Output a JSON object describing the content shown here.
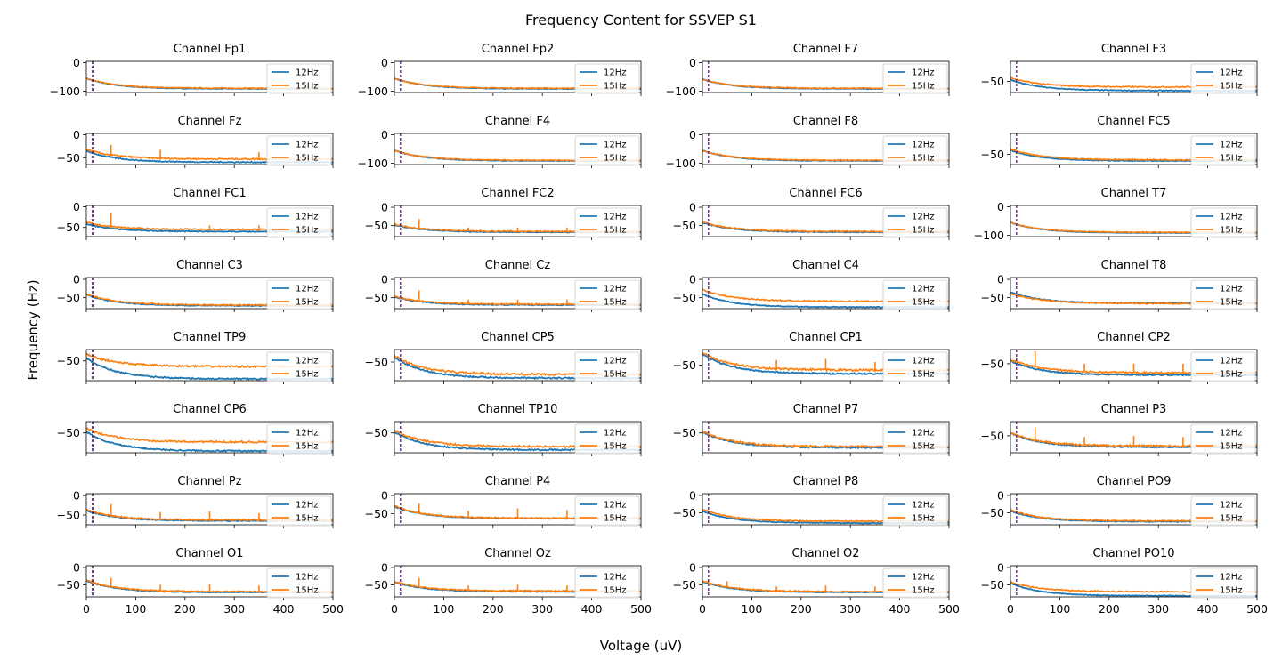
{
  "figure": {
    "title": "Frequency Content for SSVEP S1",
    "xlabel": "Voltage (uV)",
    "ylabel": "Frequency (Hz)"
  },
  "colors": {
    "12Hz": "#1f77b4",
    "15Hz": "#ff7f0e",
    "marker_12": "#1f3fb4",
    "marker_15": "#8b1a1a"
  },
  "chart_data": {
    "type": "line",
    "grid": false,
    "legend_placement": "upper-right",
    "series_names": [
      "12Hz",
      "15Hz"
    ],
    "xlim": [
      0,
      500
    ],
    "xticks": [
      0,
      100,
      200,
      300,
      400,
      500
    ],
    "stimulus_markers_hz": [
      12,
      15
    ],
    "panels": [
      {
        "title": "Channel Fp1",
        "ylim": [
          -105,
          5
        ],
        "yticks": [
          0,
          -100
        ],
        "s12": {
          "start": -55,
          "end": -92
        },
        "s15": {
          "start": -55,
          "end": -90
        },
        "peaks15": []
      },
      {
        "title": "Channel Fp2",
        "ylim": [
          -105,
          5
        ],
        "yticks": [
          0,
          -100
        ],
        "s12": {
          "start": -55,
          "end": -92
        },
        "s15": {
          "start": -55,
          "end": -90
        },
        "peaks15": []
      },
      {
        "title": "Channel F7",
        "ylim": [
          -105,
          5
        ],
        "yticks": [
          0,
          -100
        ],
        "s12": {
          "start": -58,
          "end": -92
        },
        "s15": {
          "start": -58,
          "end": -90
        },
        "peaks15": []
      },
      {
        "title": "Channel F3",
        "ylim": [
          -80,
          5
        ],
        "yticks": [
          -50
        ],
        "s12": {
          "start": -45,
          "end": -75
        },
        "s15": {
          "start": -40,
          "end": -65
        },
        "peaks15": []
      },
      {
        "title": "Channel Fz",
        "ylim": [
          -65,
          3
        ],
        "yticks": [
          0,
          -50
        ],
        "s12": {
          "start": -35,
          "end": -60
        },
        "s15": {
          "start": -32,
          "end": -53
        },
        "peaks15": [
          [
            50,
            -22
          ],
          [
            150,
            -33
          ],
          [
            350,
            -38
          ]
        ]
      },
      {
        "title": "Channel F4",
        "ylim": [
          -105,
          5
        ],
        "yticks": [
          0,
          -100
        ],
        "s12": {
          "start": -55,
          "end": -92
        },
        "s15": {
          "start": -55,
          "end": -90
        },
        "peaks15": []
      },
      {
        "title": "Channel F8",
        "ylim": [
          -105,
          5
        ],
        "yticks": [
          0,
          -100
        ],
        "s12": {
          "start": -55,
          "end": -92
        },
        "s15": {
          "start": -55,
          "end": -90
        },
        "peaks15": []
      },
      {
        "title": "Channel FC5",
        "ylim": [
          -78,
          8
        ],
        "yticks": [
          -50
        ],
        "s12": {
          "start": -38,
          "end": -68
        },
        "s15": {
          "start": -35,
          "end": -65
        },
        "peaks15": []
      },
      {
        "title": "Channel FC1",
        "ylim": [
          -72,
          3
        ],
        "yticks": [
          0,
          -50
        ],
        "s12": {
          "start": -42,
          "end": -60
        },
        "s15": {
          "start": -38,
          "end": -55
        },
        "peaks15": [
          [
            50,
            -15
          ],
          [
            250,
            -45
          ],
          [
            350,
            -45
          ]
        ]
      },
      {
        "title": "Channel FC2",
        "ylim": [
          -80,
          5
        ],
        "yticks": [
          0,
          -50
        ],
        "s12": {
          "start": -48,
          "end": -68
        },
        "s15": {
          "start": -46,
          "end": -66
        },
        "peaks15": [
          [
            50,
            -32
          ],
          [
            150,
            -55
          ],
          [
            250,
            -55
          ],
          [
            350,
            -55
          ]
        ]
      },
      {
        "title": "Channel FC6",
        "ylim": [
          -80,
          5
        ],
        "yticks": [
          0,
          -50
        ],
        "s12": {
          "start": -42,
          "end": -68
        },
        "s15": {
          "start": -40,
          "end": -66
        },
        "peaks15": []
      },
      {
        "title": "Channel T7",
        "ylim": [
          -105,
          5
        ],
        "yticks": [
          0,
          -100
        ],
        "s12": {
          "start": -55,
          "end": -92
        },
        "s15": {
          "start": -55,
          "end": -90
        },
        "peaks15": []
      },
      {
        "title": "Channel C3",
        "ylim": [
          -80,
          5
        ],
        "yticks": [
          0,
          -50
        ],
        "s12": {
          "start": -42,
          "end": -72
        },
        "s15": {
          "start": -40,
          "end": -70
        },
        "peaks15": []
      },
      {
        "title": "Channel Cz",
        "ylim": [
          -80,
          5
        ],
        "yticks": [
          0,
          -50
        ],
        "s12": {
          "start": -48,
          "end": -70
        },
        "s15": {
          "start": -46,
          "end": -68
        },
        "peaks15": [
          [
            50,
            -30
          ],
          [
            150,
            -55
          ],
          [
            250,
            -55
          ],
          [
            350,
            -55
          ]
        ]
      },
      {
        "title": "Channel C4",
        "ylim": [
          -80,
          5
        ],
        "yticks": [
          0,
          -50
        ],
        "s12": {
          "start": -40,
          "end": -76
        },
        "s15": {
          "start": -28,
          "end": -60
        },
        "peaks15": []
      },
      {
        "title": "Channel T8",
        "ylim": [
          -80,
          5
        ],
        "yticks": [
          0,
          -50
        ],
        "s12": {
          "start": -35,
          "end": -65
        },
        "s15": {
          "start": -38,
          "end": -66
        },
        "peaks15": []
      },
      {
        "title": "Channel TP9",
        "ylim": [
          -85,
          -30
        ],
        "yticks": [
          -50
        ],
        "s12": {
          "start": -45,
          "end": -82
        },
        "s15": {
          "start": -38,
          "end": -60
        },
        "peaks15": []
      },
      {
        "title": "Channel CP5",
        "ylim": [
          -80,
          -30
        ],
        "yticks": [
          -50
        ],
        "s12": {
          "start": -42,
          "end": -76
        },
        "s15": {
          "start": -40,
          "end": -70
        },
        "peaks15": []
      },
      {
        "title": "Channel CP1",
        "ylim": [
          -75,
          -25
        ],
        "yticks": [
          -50
        ],
        "s12": {
          "start": -32,
          "end": -64
        },
        "s15": {
          "start": -30,
          "end": -58
        },
        "peaks15": [
          [
            150,
            -42
          ],
          [
            250,
            -40
          ],
          [
            350,
            -45
          ]
        ]
      },
      {
        "title": "Channel CP2",
        "ylim": [
          -80,
          -25
        ],
        "yticks": [
          -50
        ],
        "s12": {
          "start": -45,
          "end": -70
        },
        "s15": {
          "start": -42,
          "end": -66
        },
        "peaks15": [
          [
            50,
            -28
          ],
          [
            150,
            -50
          ],
          [
            250,
            -50
          ],
          [
            350,
            -50
          ]
        ]
      },
      {
        "title": "Channel CP6",
        "ylim": [
          -85,
          -30
        ],
        "yticks": [
          -50
        ],
        "s12": {
          "start": -48,
          "end": -82
        },
        "s15": {
          "start": -42,
          "end": -66
        },
        "peaks15": []
      },
      {
        "title": "Channel TP10",
        "ylim": [
          -85,
          -30
        ],
        "yticks": [
          -50
        ],
        "s12": {
          "start": -48,
          "end": -80
        },
        "s15": {
          "start": -45,
          "end": -74
        },
        "peaks15": []
      },
      {
        "title": "Channel P7",
        "ylim": [
          -85,
          -30
        ],
        "yticks": [
          -50
        ],
        "s12": {
          "start": -48,
          "end": -76
        },
        "s15": {
          "start": -47,
          "end": -74
        },
        "peaks15": []
      },
      {
        "title": "Channel P3",
        "ylim": [
          -80,
          -25
        ],
        "yticks": [
          -50
        ],
        "s12": {
          "start": -45,
          "end": -70
        },
        "s15": {
          "start": -44,
          "end": -68
        },
        "peaks15": [
          [
            50,
            -35
          ],
          [
            150,
            -52
          ],
          [
            250,
            -50
          ],
          [
            350,
            -52
          ]
        ]
      },
      {
        "title": "Channel Pz",
        "ylim": [
          -75,
          5
        ],
        "yticks": [
          0,
          -50
        ],
        "s12": {
          "start": -38,
          "end": -65
        },
        "s15": {
          "start": -36,
          "end": -63
        },
        "peaks15": [
          [
            50,
            -22
          ],
          [
            150,
            -42
          ],
          [
            250,
            -40
          ],
          [
            350,
            -45
          ]
        ]
      },
      {
        "title": "Channel P4",
        "ylim": [
          -80,
          5
        ],
        "yticks": [
          0,
          -50
        ],
        "s12": {
          "start": -30,
          "end": -63
        },
        "s15": {
          "start": -28,
          "end": -62
        },
        "peaks15": [
          [
            50,
            -22
          ],
          [
            150,
            -42
          ],
          [
            250,
            -35
          ],
          [
            350,
            -40
          ]
        ]
      },
      {
        "title": "Channel P8",
        "ylim": [
          -85,
          5
        ],
        "yticks": [
          0,
          -50
        ],
        "s12": {
          "start": -45,
          "end": -80
        },
        "s15": {
          "start": -40,
          "end": -75
        },
        "peaks15": []
      },
      {
        "title": "Channel PO9",
        "ylim": [
          -85,
          5
        ],
        "yticks": [
          0,
          -50
        ],
        "s12": {
          "start": -45,
          "end": -76
        },
        "s15": {
          "start": -42,
          "end": -74
        },
        "peaks15": []
      },
      {
        "title": "Channel O1",
        "ylim": [
          -85,
          5
        ],
        "yticks": [
          0,
          -50
        ],
        "s12": {
          "start": -38,
          "end": -72
        },
        "s15": {
          "start": -36,
          "end": -70
        },
        "peaks15": [
          [
            50,
            -30
          ],
          [
            150,
            -50
          ],
          [
            250,
            -48
          ],
          [
            350,
            -52
          ]
        ]
      },
      {
        "title": "Channel Oz",
        "ylim": [
          -85,
          5
        ],
        "yticks": [
          0,
          -50
        ],
        "s12": {
          "start": -42,
          "end": -70
        },
        "s15": {
          "start": -40,
          "end": -68
        },
        "peaks15": [
          [
            50,
            -30
          ],
          [
            150,
            -52
          ],
          [
            250,
            -50
          ],
          [
            350,
            -52
          ]
        ]
      },
      {
        "title": "Channel O2",
        "ylim": [
          -85,
          5
        ],
        "yticks": [
          0,
          -50
        ],
        "s12": {
          "start": -40,
          "end": -72
        },
        "s15": {
          "start": -38,
          "end": -70
        },
        "peaks15": [
          [
            50,
            -40
          ],
          [
            150,
            -55
          ],
          [
            250,
            -52
          ],
          [
            350,
            -55
          ]
        ]
      },
      {
        "title": "Channel PO10",
        "ylim": [
          -85,
          5
        ],
        "yticks": [
          0,
          -50
        ],
        "s12": {
          "start": -45,
          "end": -82
        },
        "s15": {
          "start": -42,
          "end": -70
        },
        "peaks15": []
      }
    ]
  }
}
